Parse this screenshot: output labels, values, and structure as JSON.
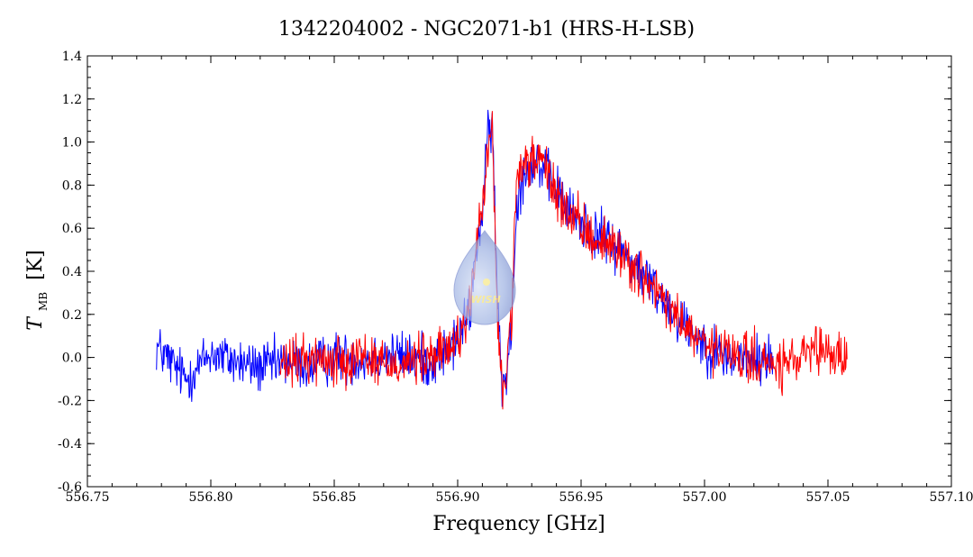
{
  "chart_data": {
    "type": "line",
    "title": "1342204002 - NGC2071-b1 (HRS-H-LSB)",
    "xlabel": "Frequency [GHz]",
    "ylabel_main": "T",
    "ylabel_sub": "MB",
    "ylabel_unit": "[K]",
    "xlim": [
      556.75,
      557.1
    ],
    "ylim": [
      -0.6,
      1.4
    ],
    "xticks": [
      "556.75",
      "556.80",
      "556.85",
      "556.90",
      "556.95",
      "557.00",
      "557.05",
      "557.10"
    ],
    "yticks": [
      "-0.6",
      "-0.4",
      "-0.2",
      "0.0",
      "0.2",
      "0.4",
      "0.6",
      "0.8",
      "1.0",
      "1.2",
      "1.4"
    ],
    "grid": false,
    "series": [
      {
        "color": "#0000ff",
        "x_range": [
          556.778,
          557.028
        ],
        "points": [
          [
            556.778,
            0.05
          ],
          [
            556.79,
            -0.1
          ],
          [
            556.8,
            0.02
          ],
          [
            556.81,
            -0.02
          ],
          [
            556.82,
            -0.05
          ],
          [
            556.83,
            -0.02
          ],
          [
            556.84,
            -0.04
          ],
          [
            556.85,
            0.0
          ],
          [
            556.86,
            -0.01
          ],
          [
            556.87,
            0.01
          ],
          [
            556.88,
            0.0
          ],
          [
            556.89,
            -0.02
          ],
          [
            556.895,
            0.02
          ],
          [
            556.9,
            0.08
          ],
          [
            556.905,
            0.22
          ],
          [
            556.908,
            0.55
          ],
          [
            556.91,
            0.65
          ],
          [
            556.912,
            1.0
          ],
          [
            556.914,
            1.1
          ],
          [
            556.916,
            0.3
          ],
          [
            556.918,
            -0.15
          ],
          [
            556.92,
            -0.05
          ],
          [
            556.922,
            0.2
          ],
          [
            556.924,
            0.75
          ],
          [
            556.928,
            0.88
          ],
          [
            556.932,
            0.92
          ],
          [
            556.936,
            0.85
          ],
          [
            556.94,
            0.78
          ],
          [
            556.945,
            0.68
          ],
          [
            556.95,
            0.62
          ],
          [
            556.955,
            0.58
          ],
          [
            556.96,
            0.55
          ],
          [
            556.965,
            0.52
          ],
          [
            556.97,
            0.45
          ],
          [
            556.975,
            0.38
          ],
          [
            556.98,
            0.32
          ],
          [
            556.985,
            0.25
          ],
          [
            556.99,
            0.18
          ],
          [
            556.995,
            0.12
          ],
          [
            557.0,
            0.06
          ],
          [
            557.005,
            0.02
          ],
          [
            557.01,
            0.0
          ],
          [
            557.02,
            -0.02
          ],
          [
            557.028,
            0.0
          ]
        ]
      },
      {
        "color": "#ff0000",
        "x_range": [
          556.828,
          557.058
        ],
        "points": [
          [
            556.828,
            -0.05
          ],
          [
            556.84,
            0.0
          ],
          [
            556.85,
            -0.02
          ],
          [
            556.86,
            0.02
          ],
          [
            556.87,
            -0.03
          ],
          [
            556.88,
            -0.02
          ],
          [
            556.89,
            0.0
          ],
          [
            556.895,
            0.03
          ],
          [
            556.9,
            0.08
          ],
          [
            556.905,
            0.25
          ],
          [
            556.908,
            0.55
          ],
          [
            556.91,
            0.68
          ],
          [
            556.912,
            0.95
          ],
          [
            556.914,
            1.05
          ],
          [
            556.916,
            0.2
          ],
          [
            556.918,
            -0.15
          ],
          [
            556.92,
            -0.05
          ],
          [
            556.922,
            0.25
          ],
          [
            556.924,
            0.8
          ],
          [
            556.928,
            0.9
          ],
          [
            556.932,
            0.93
          ],
          [
            556.936,
            0.86
          ],
          [
            556.94,
            0.76
          ],
          [
            556.945,
            0.66
          ],
          [
            556.95,
            0.6
          ],
          [
            556.955,
            0.56
          ],
          [
            556.96,
            0.53
          ],
          [
            556.965,
            0.5
          ],
          [
            556.97,
            0.44
          ],
          [
            556.975,
            0.37
          ],
          [
            556.98,
            0.3
          ],
          [
            556.985,
            0.24
          ],
          [
            556.99,
            0.17
          ],
          [
            556.995,
            0.11
          ],
          [
            557.0,
            0.05
          ],
          [
            557.01,
            0.01
          ],
          [
            557.02,
            -0.01
          ],
          [
            557.03,
            -0.05
          ],
          [
            557.04,
            0.0
          ],
          [
            557.05,
            0.02
          ],
          [
            557.058,
            0.0
          ]
        ]
      }
    ],
    "noise_amplitude": 0.09,
    "logo": {
      "name": "hifi-drop-logo",
      "text": "WISH"
    }
  }
}
